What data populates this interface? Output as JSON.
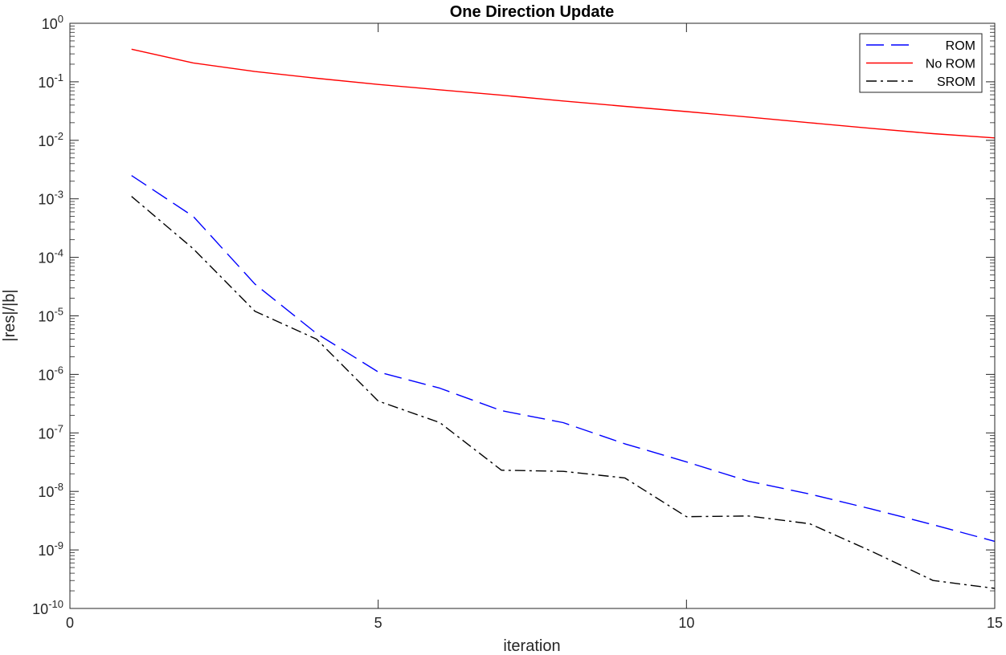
{
  "chart_data": {
    "type": "line",
    "title": "One Direction Update",
    "xlabel": "iteration",
    "ylabel": "|res|/|b|",
    "xlim": [
      0,
      15
    ],
    "ylim": [
      1e-10,
      1
    ],
    "yscale": "log",
    "grid": false,
    "legend_position": "top-right",
    "x_ticks": [
      "0",
      "5",
      "10",
      "15"
    ],
    "y_ticks": [
      {
        "base": "10",
        "exp": "0"
      },
      {
        "base": "10",
        "exp": "-1"
      },
      {
        "base": "10",
        "exp": "-2"
      },
      {
        "base": "10",
        "exp": "-3"
      },
      {
        "base": "10",
        "exp": "-4"
      },
      {
        "base": "10",
        "exp": "-5"
      },
      {
        "base": "10",
        "exp": "-6"
      },
      {
        "base": "10",
        "exp": "-7"
      },
      {
        "base": "10",
        "exp": "-8"
      },
      {
        "base": "10",
        "exp": "-9"
      },
      {
        "base": "10",
        "exp": "-10"
      }
    ],
    "x": [
      1,
      2,
      3,
      4,
      5,
      6,
      7,
      8,
      9,
      10,
      11,
      12,
      13,
      14,
      15
    ],
    "series": [
      {
        "name": "ROM",
        "color": "#0000ff",
        "style": "dashed",
        "values": [
          0.0025,
          0.0005,
          3.5e-05,
          5e-06,
          1.1e-06,
          5.8e-07,
          2.4e-07,
          1.5e-07,
          6.5e-08,
          3.2e-08,
          1.5e-08,
          9e-09,
          5e-09,
          2.7e-09,
          1.4e-09
        ]
      },
      {
        "name": "No ROM",
        "color": "#ff0000",
        "style": "solid",
        "values": [
          0.36,
          0.21,
          0.15,
          0.115,
          0.09,
          0.073,
          0.059,
          0.047,
          0.038,
          0.031,
          0.025,
          0.02,
          0.016,
          0.013,
          0.011
        ]
      },
      {
        "name": "SROM",
        "color": "#000000",
        "style": "dashdot",
        "values": [
          0.0011,
          0.00014,
          1.2e-05,
          4e-06,
          3.5e-07,
          1.5e-07,
          2.3e-08,
          2.2e-08,
          1.7e-08,
          3.7e-09,
          3.8e-09,
          2.8e-09,
          9.5e-10,
          3e-10,
          2.2e-10
        ]
      }
    ]
  }
}
